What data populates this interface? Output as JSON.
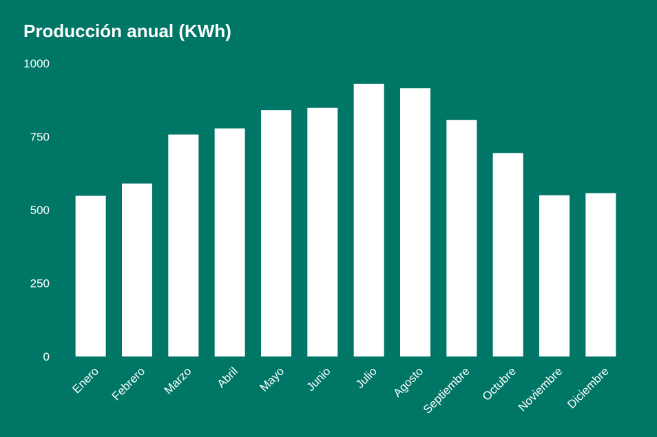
{
  "colors": {
    "background": "#007667",
    "bar": "#ffffff",
    "text": "#ffffff"
  },
  "chart_data": {
    "type": "bar",
    "title": "Producción anual (KWh)",
    "xlabel": "",
    "ylabel": "",
    "categories": [
      "Enero",
      "Febrero",
      "Marzo",
      "Abril",
      "Mayo",
      "Junio",
      "Julio",
      "Agosto",
      "Septiembre",
      "Octubre",
      "Noviembre",
      "Diciembre"
    ],
    "values": [
      548,
      590,
      757,
      778,
      840,
      848,
      930,
      915,
      807,
      694,
      550,
      557
    ],
    "ylim": [
      0,
      1000
    ],
    "yticks": [
      "0",
      "250",
      "500",
      "750",
      "1000"
    ],
    "grid": false,
    "legend": "none"
  }
}
